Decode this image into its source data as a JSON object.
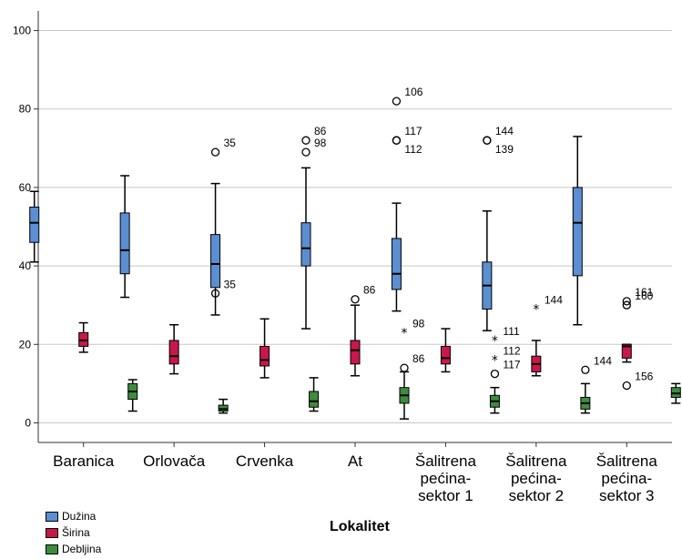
{
  "chart_data": {
    "type": "boxplot",
    "xlabel": "Lokalitet",
    "ylabel": "",
    "ylim": [
      -5,
      105
    ],
    "yticks": [
      0,
      20,
      40,
      60,
      80,
      100
    ],
    "grid": "horizontal",
    "legend_position": "bottom-left",
    "categories": [
      [
        "Baranica"
      ],
      [
        "Orlovača"
      ],
      [
        "Crvenka"
      ],
      [
        "At"
      ],
      [
        "Šalitrena",
        "pećina-",
        "sektor 1"
      ],
      [
        "Šalitrena",
        "pećina-",
        "sektor 2"
      ],
      [
        "Šalitrena",
        "pećina-",
        "sektor 3"
      ]
    ],
    "series": [
      {
        "name": "Dužina",
        "color": "#5b8fd1",
        "boxes": [
          {
            "min": 41,
            "q1": 46,
            "median": 51,
            "q3": 55,
            "max": 59
          },
          {
            "min": 32,
            "q1": 38,
            "median": 44,
            "q3": 53.5,
            "max": 63
          },
          {
            "min": 27.5,
            "q1": 34.5,
            "median": 40.5,
            "q3": 48,
            "max": 61
          },
          {
            "min": 24,
            "q1": 40,
            "median": 44.5,
            "q3": 51,
            "max": 65
          },
          {
            "min": 28.5,
            "q1": 34,
            "median": 38,
            "q3": 47,
            "max": 56
          },
          {
            "min": 23.5,
            "q1": 29,
            "median": 35,
            "q3": 41,
            "max": 54
          },
          {
            "min": 25,
            "q1": 37.5,
            "median": 51,
            "q3": 60,
            "max": 73
          }
        ]
      },
      {
        "name": "Širina",
        "color": "#c8174a",
        "boxes": [
          {
            "min": 18,
            "q1": 19.5,
            "median": 21,
            "q3": 23,
            "max": 25.5
          },
          {
            "min": 12.5,
            "q1": 15,
            "median": 17,
            "q3": 21,
            "max": 25
          },
          {
            "min": 11.5,
            "q1": 14.5,
            "median": 16,
            "q3": 19.5,
            "max": 26.5
          },
          {
            "min": 12,
            "q1": 15,
            "median": 18.5,
            "q3": 21,
            "max": 30
          },
          {
            "min": 13,
            "q1": 15,
            "median": 16.5,
            "q3": 19.5,
            "max": 24
          },
          {
            "min": 12,
            "q1": 13,
            "median": 15,
            "q3": 17,
            "max": 21
          },
          {
            "min": 15.5,
            "q1": 16.5,
            "median": 19.5,
            "q3": 20,
            "max": 20
          }
        ]
      },
      {
        "name": "Debljina",
        "color": "#3d8c3d",
        "boxes": [
          {
            "min": 3,
            "q1": 6,
            "median": 8,
            "q3": 10,
            "max": 11
          },
          {
            "min": 2.5,
            "q1": 3,
            "median": 3.5,
            "q3": 4.5,
            "max": 6
          },
          {
            "min": 3,
            "q1": 4,
            "median": 5.5,
            "q3": 8,
            "max": 11.5
          },
          {
            "min": 1,
            "q1": 5,
            "median": 7,
            "q3": 9,
            "max": 13
          },
          {
            "min": 2.5,
            "q1": 4,
            "median": 5.5,
            "q3": 7,
            "max": 9
          },
          {
            "min": 2.5,
            "q1": 3.5,
            "median": 5,
            "q3": 6.5,
            "max": 10
          },
          {
            "min": 5,
            "q1": 6.5,
            "median": 7.5,
            "q3": 9,
            "max": 10
          }
        ]
      }
    ],
    "outliers": [
      {
        "category": 2,
        "series": 0,
        "value": 69,
        "label": "35",
        "shape": "circle"
      },
      {
        "category": 2,
        "series": 0,
        "value": 33,
        "label": "35",
        "shape": "circle"
      },
      {
        "category": 3,
        "series": 0,
        "value": 72,
        "label": "86",
        "shape": "circle"
      },
      {
        "category": 3,
        "series": 0,
        "value": 69,
        "label": "98",
        "shape": "circle"
      },
      {
        "category": 3,
        "series": 1,
        "value": 31.5,
        "label": "86",
        "shape": "circle"
      },
      {
        "category": 3,
        "series": 2,
        "value": 23,
        "label": "98",
        "shape": "star"
      },
      {
        "category": 3,
        "series": 2,
        "value": 14,
        "label": "86",
        "shape": "circle"
      },
      {
        "category": 4,
        "series": 0,
        "value": 82,
        "label": "106",
        "shape": "circle"
      },
      {
        "category": 4,
        "series": 0,
        "value": 72,
        "label": "117",
        "shape": "circle"
      },
      {
        "category": 4,
        "series": 0,
        "value": 72,
        "label": "112",
        "shape": "circle"
      },
      {
        "category": 4,
        "series": 2,
        "value": 21,
        "label": "111",
        "shape": "star"
      },
      {
        "category": 4,
        "series": 2,
        "value": 16,
        "label": "112",
        "shape": "star"
      },
      {
        "category": 4,
        "series": 2,
        "value": 12.5,
        "label": "117",
        "shape": "circle"
      },
      {
        "category": 5,
        "series": 0,
        "value": 72,
        "label": "144",
        "shape": "circle"
      },
      {
        "category": 5,
        "series": 0,
        "value": 72,
        "label": "139",
        "shape": "circle"
      },
      {
        "category": 5,
        "series": 1,
        "value": 29,
        "label": "144",
        "shape": "star"
      },
      {
        "category": 5,
        "series": 2,
        "value": 13.5,
        "label": "144",
        "shape": "circle"
      },
      {
        "category": 6,
        "series": 1,
        "value": 31,
        "label": "161",
        "shape": "circle"
      },
      {
        "category": 6,
        "series": 1,
        "value": 30,
        "label": "160",
        "shape": "circle"
      },
      {
        "category": 6,
        "series": 1,
        "value": 9.5,
        "label": "156",
        "shape": "circle"
      }
    ]
  }
}
